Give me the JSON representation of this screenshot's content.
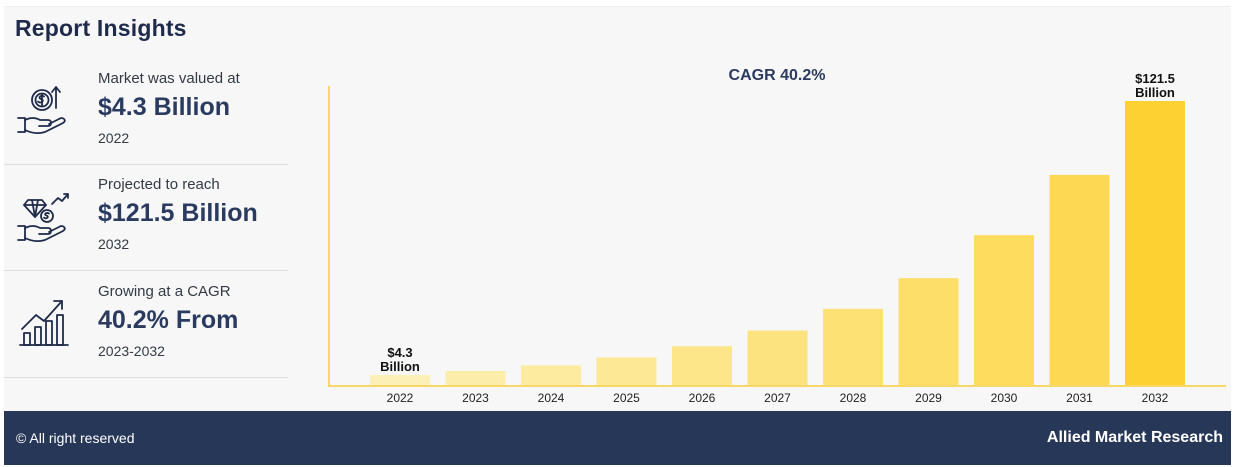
{
  "title": "Report Insights",
  "insights": [
    {
      "label": "Market was valued at",
      "value": "$4.3 Billion",
      "sub": "2022",
      "icon": "money-hand-icon"
    },
    {
      "label": "Projected to reach",
      "value": "$121.5 Billion",
      "sub": "2032",
      "icon": "diamond-hand-icon"
    },
    {
      "label": "Growing at a CAGR",
      "value": "40.2% From",
      "sub": "2023-2032",
      "icon": "growth-chart-icon"
    }
  ],
  "footer": {
    "copyright": "© All right reserved",
    "brand": "Allied Market Research"
  },
  "colors": {
    "navy": "#273757",
    "axis": "#f5d867",
    "bar_light": "#fdf0b6",
    "bar_dark": "#fdd235",
    "bar_last": "#fdd131"
  },
  "chart_data": {
    "type": "bar",
    "title": "CAGR 40.2%",
    "categories": [
      "2022",
      "2023",
      "2024",
      "2025",
      "2026",
      "2027",
      "2028",
      "2029",
      "2030",
      "2031",
      "2032"
    ],
    "values": [
      4.3,
      6.0,
      8.4,
      11.8,
      16.6,
      23.3,
      32.6,
      45.7,
      64.1,
      89.9,
      121.5
    ],
    "value_labels": [
      {
        "index": 0,
        "lines": [
          "$4.3",
          "Billion"
        ]
      },
      {
        "index": 10,
        "lines": [
          "$121.5",
          "Billion"
        ]
      }
    ],
    "unit": "Billion",
    "ylim": [
      0,
      121.5
    ],
    "grid": false,
    "legend": "none"
  }
}
